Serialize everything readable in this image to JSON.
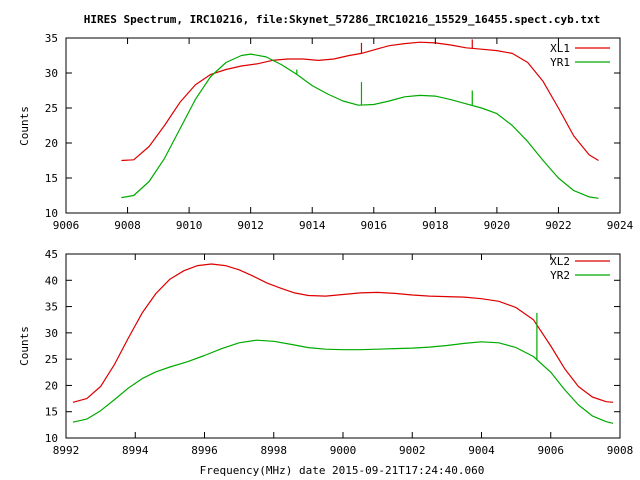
{
  "chart_data": [
    {
      "type": "line",
      "title": "HIRES Spectrum, IRC10216, file:Skynet_57286_IRC10216_15529_16455.spect.cyb.txt",
      "xlabel": "",
      "ylabel": "Counts",
      "xlim": [
        9006,
        9024
      ],
      "ylim": [
        10,
        35
      ],
      "xticks": [
        9006,
        9008,
        9010,
        9012,
        9014,
        9016,
        9018,
        9020,
        9022,
        9024
      ],
      "yticks": [
        10,
        15,
        20,
        25,
        30,
        35
      ],
      "grid": false,
      "legend": "top-right",
      "series": [
        {
          "name": "XL1",
          "color": "#dd0000",
          "x": [
            9007.8,
            9008.2,
            9008.7,
            9009.2,
            9009.7,
            9010.2,
            9010.7,
            9011.2,
            9011.7,
            9012.2,
            9012.7,
            9013.2,
            9013.7,
            9014.2,
            9014.7,
            9015.2,
            9015.6,
            9016.0,
            9016.5,
            9017.0,
            9017.5,
            9018.0,
            9018.5,
            9019.0,
            9019.5,
            9020.0,
            9020.5,
            9021.0,
            9021.5,
            9022.0,
            9022.5,
            9023.0,
            9023.3
          ],
          "y": [
            17.5,
            17.6,
            19.5,
            22.5,
            25.8,
            28.3,
            29.8,
            30.5,
            31.0,
            31.3,
            31.8,
            32.0,
            32.0,
            31.8,
            32.0,
            32.5,
            32.8,
            33.3,
            33.9,
            34.2,
            34.4,
            34.3,
            34.0,
            33.6,
            33.4,
            33.2,
            32.8,
            31.5,
            28.8,
            25.0,
            21.0,
            18.3,
            17.5
          ],
          "spikes": [
            {
              "x": 9015.6,
              "y": 34.3
            },
            {
              "x": 9019.2,
              "y": 34.8
            }
          ]
        },
        {
          "name": "YR1",
          "color": "#00aa00",
          "x": [
            9007.8,
            9008.2,
            9008.7,
            9009.2,
            9009.7,
            9010.2,
            9010.7,
            9011.2,
            9011.7,
            9012.0,
            9012.5,
            9013.0,
            9013.5,
            9014.0,
            9014.5,
            9015.0,
            9015.5,
            9016.0,
            9016.5,
            9017.0,
            9017.5,
            9018.0,
            9018.5,
            9019.0,
            9019.5,
            9020.0,
            9020.5,
            9021.0,
            9021.5,
            9022.0,
            9022.5,
            9023.0,
            9023.3
          ],
          "y": [
            12.2,
            12.5,
            14.5,
            17.8,
            22.0,
            26.2,
            29.5,
            31.5,
            32.5,
            32.7,
            32.3,
            31.2,
            29.8,
            28.2,
            27.0,
            26.0,
            25.4,
            25.5,
            26.0,
            26.6,
            26.8,
            26.7,
            26.2,
            25.6,
            25.0,
            24.2,
            22.5,
            20.2,
            17.5,
            15.0,
            13.2,
            12.3,
            12.1
          ],
          "spikes": [
            {
              "x": 9015.6,
              "y": 28.7
            },
            {
              "x": 9019.2,
              "y": 27.5
            },
            {
              "x": 9013.5,
              "y": 30.5
            }
          ]
        }
      ]
    },
    {
      "type": "line",
      "title": "",
      "xlabel": "Frequency(MHz) date 2015-09-21T17:24:40.060",
      "ylabel": "Counts",
      "xlim": [
        8992,
        9008
      ],
      "ylim": [
        10,
        45
      ],
      "xticks": [
        8992,
        8994,
        8996,
        8998,
        9000,
        9002,
        9004,
        9006,
        9008
      ],
      "yticks": [
        10,
        15,
        20,
        25,
        30,
        35,
        40,
        45
      ],
      "grid": false,
      "legend": "top-right",
      "series": [
        {
          "name": "XL2",
          "color": "#dd0000",
          "x": [
            8992.2,
            8992.6,
            8993.0,
            8993.4,
            8993.8,
            8994.2,
            8994.6,
            8995.0,
            8995.4,
            8995.8,
            8996.2,
            8996.6,
            8997.0,
            8997.4,
            8997.8,
            8998.2,
            8998.6,
            8999.0,
            8999.5,
            9000.0,
            9000.5,
            9001.0,
            9001.5,
            9002.0,
            9002.5,
            9003.0,
            9003.5,
            9004.0,
            9004.5,
            9005.0,
            9005.5,
            9006.0,
            9006.4,
            9006.8,
            9007.2,
            9007.6,
            9007.8
          ],
          "y": [
            16.8,
            17.5,
            19.8,
            24.0,
            29.0,
            33.8,
            37.5,
            40.2,
            41.8,
            42.8,
            43.1,
            42.8,
            42.0,
            40.8,
            39.5,
            38.5,
            37.6,
            37.1,
            37.0,
            37.3,
            37.6,
            37.7,
            37.5,
            37.2,
            37.0,
            36.9,
            36.8,
            36.5,
            36.0,
            34.8,
            32.5,
            27.5,
            23.2,
            19.8,
            17.8,
            16.9,
            16.8
          ],
          "spikes": []
        },
        {
          "name": "YR2",
          "color": "#00aa00",
          "x": [
            8992.2,
            8992.6,
            8993.0,
            8993.4,
            8993.8,
            8994.2,
            8994.6,
            8995.0,
            8995.5,
            8996.0,
            8996.5,
            8997.0,
            8997.5,
            8998.0,
            8998.5,
            8999.0,
            8999.5,
            9000.0,
            9000.5,
            9001.0,
            9001.5,
            9002.0,
            9002.5,
            9003.0,
            9003.5,
            9004.0,
            9004.5,
            9005.0,
            9005.5,
            9006.0,
            9006.4,
            9006.8,
            9007.2,
            9007.6,
            9007.8
          ],
          "y": [
            13.0,
            13.6,
            15.2,
            17.3,
            19.5,
            21.3,
            22.6,
            23.5,
            24.5,
            25.7,
            27.0,
            28.1,
            28.6,
            28.4,
            27.8,
            27.2,
            26.9,
            26.8,
            26.8,
            26.9,
            27.0,
            27.1,
            27.3,
            27.6,
            28.0,
            28.3,
            28.1,
            27.2,
            25.5,
            22.5,
            19.2,
            16.3,
            14.2,
            13.1,
            12.8
          ],
          "spikes": [
            {
              "x": 9005.6,
              "y": 33.8
            }
          ]
        }
      ]
    }
  ]
}
